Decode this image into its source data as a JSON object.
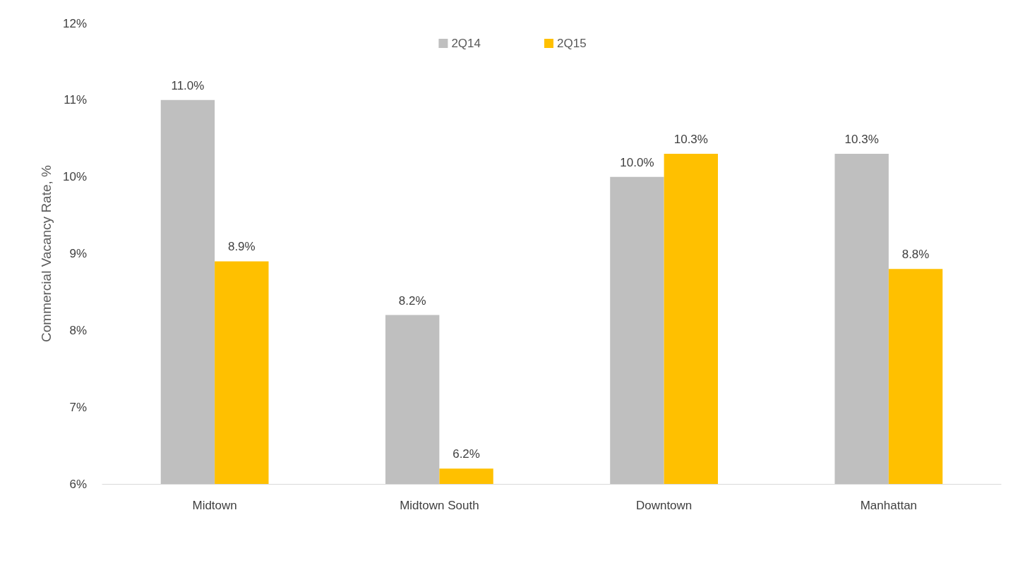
{
  "chart_data": {
    "type": "bar",
    "ylabel": "Commercial Vacancy Rate, %",
    "categories": [
      "Midtown",
      "Midtown South",
      "Downtown",
      "Manhattan"
    ],
    "series": [
      {
        "name": "2Q14",
        "color": "#bfbfbf",
        "values": [
          11.0,
          8.2,
          10.0,
          10.3
        ],
        "value_labels": [
          "11.0%",
          "8.2%",
          "10.0%",
          "10.3%"
        ]
      },
      {
        "name": "2Q15",
        "color": "#ffc000",
        "values": [
          8.9,
          6.2,
          10.3,
          8.8
        ],
        "value_labels": [
          "8.9%",
          "6.2%",
          "10.3%",
          "8.8%"
        ]
      }
    ],
    "ylim": [
      6,
      12
    ],
    "yticks": [
      {
        "value": 6,
        "label": "6%"
      },
      {
        "value": 7,
        "label": "7%"
      },
      {
        "value": 8,
        "label": "8%"
      },
      {
        "value": 9,
        "label": "9%"
      },
      {
        "value": 10,
        "label": "10%"
      },
      {
        "value": 11,
        "label": "11%"
      },
      {
        "value": 12,
        "label": "12%"
      }
    ],
    "grid": false,
    "legend": "top"
  }
}
